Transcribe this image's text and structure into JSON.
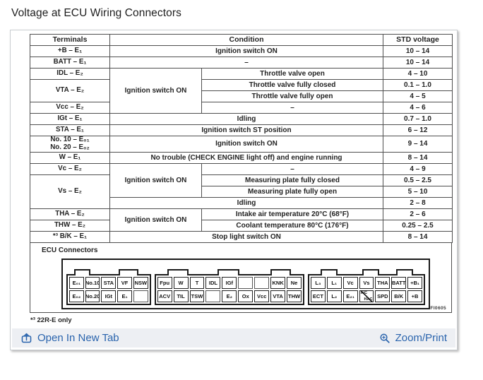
{
  "page": {
    "title": "Voltage at ECU Wiring Connectors"
  },
  "table": {
    "headers": {
      "terminals": "Terminals",
      "condition": "Condition",
      "voltage": "STD voltage"
    },
    "rows": [
      {
        "cells": [
          {
            "cls": "c-term",
            "text": "+B – E₁",
            "name": "terminal-cell"
          },
          {
            "cls": "c-full",
            "colspan": 2,
            "text": "Ignition switch ON",
            "name": "condition-cell"
          },
          {
            "cls": "c-volt",
            "text": "10 – 14",
            "name": "voltage-cell"
          }
        ]
      },
      {
        "cells": [
          {
            "cls": "c-term",
            "text": "BATT – E₁",
            "name": "terminal-cell"
          },
          {
            "cls": "c-full",
            "colspan": 2,
            "text": "–",
            "name": "condition-cell"
          },
          {
            "cls": "c-volt",
            "text": "10 – 14",
            "name": "voltage-cell"
          }
        ]
      },
      {
        "cells": [
          {
            "cls": "c-term",
            "text": "IDL – E₂",
            "name": "terminal-cell"
          },
          {
            "cls": "c-condL",
            "rowspan": 4,
            "text": "Ignition switch ON",
            "name": "condition-cell"
          },
          {
            "cls": "c-condR",
            "text": "Throttle valve open",
            "name": "condition-cell"
          },
          {
            "cls": "c-volt",
            "text": "4 – 10",
            "name": "voltage-cell"
          }
        ]
      },
      {
        "cells": [
          {
            "cls": "c-term",
            "rowspan": 2,
            "text": "VTA – E₂",
            "name": "terminal-cell"
          },
          {
            "cls": "c-condR",
            "text": "Throttle valve fully closed",
            "name": "condition-cell"
          },
          {
            "cls": "c-volt",
            "text": "0.1 – 1.0",
            "name": "voltage-cell"
          }
        ]
      },
      {
        "cells": [
          {
            "cls": "c-condR",
            "text": "Throttle valve fully open",
            "name": "condition-cell"
          },
          {
            "cls": "c-volt",
            "text": "4 – 5",
            "name": "voltage-cell"
          }
        ]
      },
      {
        "cells": [
          {
            "cls": "c-term",
            "text": "Vcc – E₂",
            "name": "terminal-cell"
          },
          {
            "cls": "c-condR",
            "text": "–",
            "name": "condition-cell"
          },
          {
            "cls": "c-volt",
            "text": "4 – 6",
            "name": "voltage-cell"
          }
        ]
      },
      {
        "cells": [
          {
            "cls": "c-term",
            "text": "IGt – E₁",
            "name": "terminal-cell"
          },
          {
            "cls": "c-full",
            "colspan": 2,
            "text": "Idling",
            "name": "condition-cell"
          },
          {
            "cls": "c-volt",
            "text": "0.7 – 1.0",
            "name": "voltage-cell"
          }
        ]
      },
      {
        "cells": [
          {
            "cls": "c-term",
            "text": "STA – E₁",
            "name": "terminal-cell"
          },
          {
            "cls": "c-full",
            "colspan": 2,
            "text": "Ignition switch ST position",
            "name": "condition-cell"
          },
          {
            "cls": "c-volt",
            "text": "6 – 12",
            "name": "voltage-cell"
          }
        ]
      },
      {
        "cells": [
          {
            "cls": "c-term c-2line",
            "text": "No. 10 – E₀₁\nNo. 20 – E₀₂",
            "name": "terminal-cell"
          },
          {
            "cls": "c-full",
            "colspan": 2,
            "text": "Ignition switch ON",
            "name": "condition-cell"
          },
          {
            "cls": "c-volt",
            "text": "9 – 14",
            "name": "voltage-cell"
          }
        ]
      },
      {
        "cells": [
          {
            "cls": "c-term",
            "text": "W – E₁",
            "name": "terminal-cell"
          },
          {
            "cls": "c-full",
            "colspan": 2,
            "text": "No trouble (CHECK ENGINE light off) and engine running",
            "name": "condition-cell"
          },
          {
            "cls": "c-volt",
            "text": "8 – 14",
            "name": "voltage-cell"
          }
        ]
      },
      {
        "cells": [
          {
            "cls": "c-term",
            "text": "Vc – E₂",
            "name": "terminal-cell"
          },
          {
            "cls": "c-condL",
            "rowspan": 3,
            "text": "Ignition switch ON",
            "name": "condition-cell"
          },
          {
            "cls": "c-condR",
            "text": "–",
            "name": "condition-cell"
          },
          {
            "cls": "c-volt",
            "text": "4 – 9",
            "name": "voltage-cell"
          }
        ]
      },
      {
        "cells": [
          {
            "cls": "c-term",
            "rowspan": 3,
            "text": "Vs – E₂",
            "name": "terminal-cell"
          },
          {
            "cls": "c-condR",
            "text": "Measuring plate fully closed",
            "name": "condition-cell"
          },
          {
            "cls": "c-volt",
            "text": "0.5 – 2.5",
            "name": "voltage-cell"
          }
        ]
      },
      {
        "cells": [
          {
            "cls": "c-condR",
            "text": "Measuring plate fully open",
            "name": "condition-cell"
          },
          {
            "cls": "c-volt",
            "text": "5 – 10",
            "name": "voltage-cell"
          }
        ]
      },
      {
        "cells": [
          {
            "cls": "c-full",
            "colspan": 2,
            "text": "Idling",
            "name": "condition-cell"
          },
          {
            "cls": "c-volt",
            "text": "2 – 8",
            "name": "voltage-cell"
          }
        ]
      },
      {
        "cells": [
          {
            "cls": "c-term",
            "text": "THA – E₂",
            "name": "terminal-cell"
          },
          {
            "cls": "c-condL",
            "rowspan": 2,
            "text": "Ignition switch ON",
            "name": "condition-cell"
          },
          {
            "cls": "c-condR",
            "text": "Intake air temperature 20°C (68°F)",
            "name": "condition-cell"
          },
          {
            "cls": "c-volt",
            "text": "2 – 6",
            "name": "voltage-cell"
          }
        ]
      },
      {
        "cells": [
          {
            "cls": "c-term",
            "text": "THW – E₂",
            "name": "terminal-cell"
          },
          {
            "cls": "c-condR",
            "text": "Coolant temperature 80°C (176°F)",
            "name": "condition-cell"
          },
          {
            "cls": "c-volt",
            "text": "0.25 – 2.5",
            "name": "voltage-cell"
          }
        ]
      },
      {
        "cells": [
          {
            "cls": "c-term",
            "text": "*³ B/K – E₁",
            "name": "terminal-cell"
          },
          {
            "cls": "c-full",
            "colspan": 2,
            "text": "Stop light switch ON",
            "name": "condition-cell"
          },
          {
            "cls": "c-volt",
            "text": "8 – 14",
            "name": "voltage-cell"
          }
        ]
      }
    ]
  },
  "connector": {
    "label": "ECU Connectors",
    "figure_code": "FI0605",
    "blocks": [
      {
        "top": [
          "E₀₁",
          "No.10",
          "STA",
          "VF",
          "NSW"
        ],
        "bottom": [
          "E₀₂",
          "No.20",
          "IGt",
          "E₁",
          ""
        ]
      },
      {
        "top": [
          "Fpu",
          "W",
          "T",
          "IDL",
          "IGf",
          "",
          "",
          "KNK",
          "Ne"
        ],
        "bottom": [
          "ACV",
          "TIL",
          "TSW",
          "",
          "E₂",
          "Ox",
          "Vcc",
          "VTA",
          "THW"
        ]
      },
      {
        "top": [
          "L₃",
          "L₁",
          "Vc",
          "Vs",
          "THA",
          "BATT",
          "+B₁"
        ],
        "bottom": [
          "ECT",
          "L₂",
          "E₂₁",
          "A/C|HAC",
          "SPD",
          "B/K",
          "+B"
        ]
      }
    ]
  },
  "footnote": "*³ 22R-E only",
  "footer": {
    "open_in_new_tab": "Open In New Tab",
    "zoom_print": "Zoom/Print"
  },
  "colors": {
    "link": "#2a64ad",
    "footer_bg": "#edeff3",
    "card_border": "#c9cdd1",
    "scan_ink": "#222222"
  }
}
